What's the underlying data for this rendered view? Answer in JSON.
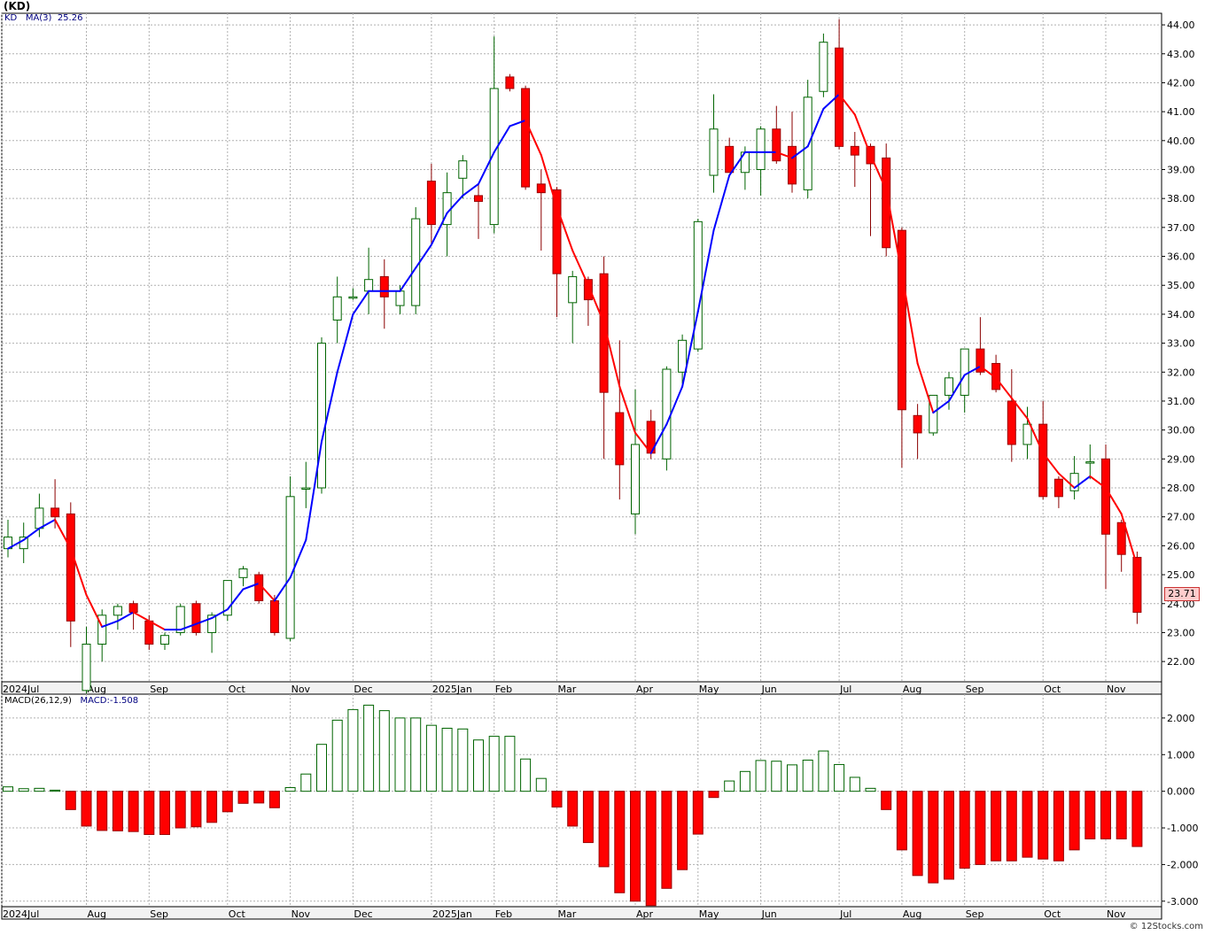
{
  "header": {
    "symbol_label": "(KD)",
    "watermark": "© 12Stocks.com"
  },
  "colors": {
    "up": "#006400",
    "down": "#ff0000",
    "ma_up": "#0000ff",
    "ma_down": "#ff0000",
    "grid": "#b0b0b0",
    "axis": "#000000",
    "price_tag_bg": "#ffcccc"
  },
  "chart_data": [
    {
      "type": "candlestick",
      "legend": {
        "ticker": "KD",
        "ma_label": "MA(3)",
        "ma_value": "25.26"
      },
      "last_price_label": "23.71",
      "ylim": [
        21.3,
        44.4
      ],
      "yticks": [
        "44.00",
        "43.00",
        "42.00",
        "41.00",
        "40.00",
        "39.00",
        "38.00",
        "37.00",
        "36.00",
        "35.00",
        "34.00",
        "33.00",
        "32.00",
        "31.00",
        "30.00",
        "29.00",
        "28.00",
        "27.00",
        "26.00",
        "25.00",
        "24.00",
        "23.00",
        "22.00"
      ],
      "x_labels": [
        {
          "label": "2024Jul",
          "index": 0
        },
        {
          "label": "Aug",
          "index": 5
        },
        {
          "label": "Sep",
          "index": 9
        },
        {
          "label": "Oct",
          "index": 14
        },
        {
          "label": "Nov",
          "index": 18
        },
        {
          "label": "Dec",
          "index": 22
        },
        {
          "label": "2025Jan",
          "index": 27
        },
        {
          "label": "Feb",
          "index": 31
        },
        {
          "label": "Mar",
          "index": 35
        },
        {
          "label": "Apr",
          "index": 40
        },
        {
          "label": "May",
          "index": 44
        },
        {
          "label": "Jun",
          "index": 48
        },
        {
          "label": "Jul",
          "index": 53
        },
        {
          "label": "Aug",
          "index": 57
        },
        {
          "label": "Sep",
          "index": 61
        },
        {
          "label": "Oct",
          "index": 66
        },
        {
          "label": "Nov",
          "index": 70
        }
      ],
      "candles": [
        {
          "o": 25.9,
          "h": 26.9,
          "l": 25.6,
          "c": 26.3
        },
        {
          "o": 25.9,
          "h": 26.8,
          "l": 25.4,
          "c": 26.3
        },
        {
          "o": 26.6,
          "h": 27.8,
          "l": 26.3,
          "c": 27.3
        },
        {
          "o": 27.3,
          "h": 28.3,
          "l": 26.6,
          "c": 27.0
        },
        {
          "o": 27.1,
          "h": 27.5,
          "l": 22.5,
          "c": 23.4
        },
        {
          "o": 21.0,
          "h": 23.2,
          "l": 20.9,
          "c": 22.6
        },
        {
          "o": 22.6,
          "h": 23.8,
          "l": 22.0,
          "c": 23.6
        },
        {
          "o": 23.6,
          "h": 24.0,
          "l": 23.1,
          "c": 23.9
        },
        {
          "o": 24.0,
          "h": 24.1,
          "l": 23.1,
          "c": 23.7
        },
        {
          "o": 23.4,
          "h": 23.6,
          "l": 22.4,
          "c": 22.6
        },
        {
          "o": 22.6,
          "h": 23.0,
          "l": 22.4,
          "c": 22.9
        },
        {
          "o": 23.0,
          "h": 24.0,
          "l": 22.9,
          "c": 23.9
        },
        {
          "o": 24.0,
          "h": 24.1,
          "l": 22.9,
          "c": 23.0
        },
        {
          "o": 23.0,
          "h": 23.7,
          "l": 22.3,
          "c": 23.6
        },
        {
          "o": 23.6,
          "h": 24.8,
          "l": 23.4,
          "c": 24.8
        },
        {
          "o": 24.9,
          "h": 25.3,
          "l": 24.6,
          "c": 25.2
        },
        {
          "o": 25.0,
          "h": 25.1,
          "l": 24.0,
          "c": 24.1
        },
        {
          "o": 24.1,
          "h": 24.3,
          "l": 22.9,
          "c": 23.0
        },
        {
          "o": 22.8,
          "h": 28.4,
          "l": 22.7,
          "c": 27.7
        },
        {
          "o": 28.0,
          "h": 28.9,
          "l": 27.3,
          "c": 28.0
        },
        {
          "o": 28.0,
          "h": 33.2,
          "l": 27.8,
          "c": 33.0
        },
        {
          "o": 33.8,
          "h": 35.3,
          "l": 33.0,
          "c": 34.6
        },
        {
          "o": 34.6,
          "h": 34.9,
          "l": 34.5,
          "c": 34.6
        },
        {
          "o": 34.8,
          "h": 36.3,
          "l": 34.0,
          "c": 35.2
        },
        {
          "o": 35.3,
          "h": 35.9,
          "l": 33.5,
          "c": 34.6
        },
        {
          "o": 34.3,
          "h": 35.0,
          "l": 34.0,
          "c": 34.8
        },
        {
          "o": 34.3,
          "h": 37.7,
          "l": 34.0,
          "c": 37.3
        },
        {
          "o": 38.6,
          "h": 39.2,
          "l": 36.4,
          "c": 37.1
        },
        {
          "o": 37.1,
          "h": 38.9,
          "l": 36.0,
          "c": 38.2
        },
        {
          "o": 38.7,
          "h": 39.5,
          "l": 38.0,
          "c": 39.3
        },
        {
          "o": 38.1,
          "h": 38.5,
          "l": 36.6,
          "c": 37.9
        },
        {
          "o": 37.1,
          "h": 43.6,
          "l": 36.8,
          "c": 41.8
        },
        {
          "o": 42.2,
          "h": 42.3,
          "l": 41.7,
          "c": 41.8
        },
        {
          "o": 41.8,
          "h": 41.9,
          "l": 38.3,
          "c": 38.4
        },
        {
          "o": 38.5,
          "h": 39.0,
          "l": 36.2,
          "c": 38.2
        },
        {
          "o": 38.3,
          "h": 38.4,
          "l": 33.9,
          "c": 35.4
        },
        {
          "o": 34.4,
          "h": 35.5,
          "l": 33.0,
          "c": 35.3
        },
        {
          "o": 35.2,
          "h": 35.3,
          "l": 33.6,
          "c": 34.5
        },
        {
          "o": 35.4,
          "h": 36.0,
          "l": 29.0,
          "c": 31.3
        },
        {
          "o": 30.6,
          "h": 33.1,
          "l": 27.6,
          "c": 28.8
        },
        {
          "o": 27.1,
          "h": 31.4,
          "l": 26.4,
          "c": 29.5
        },
        {
          "o": 30.3,
          "h": 30.7,
          "l": 29.0,
          "c": 29.2
        },
        {
          "o": 29.0,
          "h": 32.2,
          "l": 28.6,
          "c": 32.1
        },
        {
          "o": 32.0,
          "h": 33.3,
          "l": 31.6,
          "c": 33.1
        },
        {
          "o": 32.8,
          "h": 37.3,
          "l": 32.7,
          "c": 37.2
        },
        {
          "o": 38.8,
          "h": 41.6,
          "l": 38.2,
          "c": 40.4
        },
        {
          "o": 39.8,
          "h": 40.1,
          "l": 38.9,
          "c": 38.9
        },
        {
          "o": 38.9,
          "h": 39.8,
          "l": 38.3,
          "c": 39.6
        },
        {
          "o": 39.0,
          "h": 40.5,
          "l": 38.1,
          "c": 40.4
        },
        {
          "o": 40.4,
          "h": 41.2,
          "l": 39.2,
          "c": 39.3
        },
        {
          "o": 39.8,
          "h": 41.0,
          "l": 38.2,
          "c": 38.5
        },
        {
          "o": 38.3,
          "h": 42.1,
          "l": 38.0,
          "c": 41.5
        },
        {
          "o": 41.7,
          "h": 43.7,
          "l": 41.5,
          "c": 43.4
        },
        {
          "o": 43.2,
          "h": 44.2,
          "l": 39.7,
          "c": 39.8
        },
        {
          "o": 39.8,
          "h": 40.3,
          "l": 38.4,
          "c": 39.5
        },
        {
          "o": 39.8,
          "h": 39.9,
          "l": 36.7,
          "c": 39.2
        },
        {
          "o": 39.4,
          "h": 39.9,
          "l": 36.0,
          "c": 36.3
        },
        {
          "o": 36.9,
          "h": 37.0,
          "l": 28.7,
          "c": 30.7
        },
        {
          "o": 30.5,
          "h": 30.9,
          "l": 29.0,
          "c": 29.9
        },
        {
          "o": 29.9,
          "h": 31.2,
          "l": 29.8,
          "c": 31.2
        },
        {
          "o": 31.2,
          "h": 32.0,
          "l": 30.7,
          "c": 31.8
        },
        {
          "o": 31.2,
          "h": 32.8,
          "l": 30.6,
          "c": 32.8
        },
        {
          "o": 32.8,
          "h": 33.9,
          "l": 31.9,
          "c": 32.0
        },
        {
          "o": 32.3,
          "h": 32.6,
          "l": 31.3,
          "c": 31.4
        },
        {
          "o": 31.0,
          "h": 32.1,
          "l": 28.9,
          "c": 29.5
        },
        {
          "o": 29.5,
          "h": 30.8,
          "l": 29.0,
          "c": 30.2
        },
        {
          "o": 30.2,
          "h": 31.0,
          "l": 27.6,
          "c": 27.7
        },
        {
          "o": 28.3,
          "h": 28.4,
          "l": 27.3,
          "c": 27.7
        },
        {
          "o": 27.9,
          "h": 29.1,
          "l": 27.6,
          "c": 28.5
        },
        {
          "o": 28.9,
          "h": 29.5,
          "l": 28.3,
          "c": 28.9
        },
        {
          "o": 29.0,
          "h": 29.5,
          "l": 24.5,
          "c": 26.4
        },
        {
          "o": 26.8,
          "h": 26.9,
          "l": 25.1,
          "c": 25.7
        },
        {
          "o": 25.6,
          "h": 25.8,
          "l": 23.3,
          "c": 23.7
        }
      ],
      "ma": [
        25.9,
        26.2,
        26.6,
        26.9,
        25.9,
        24.3,
        23.2,
        23.4,
        23.7,
        23.4,
        23.1,
        23.1,
        23.3,
        23.5,
        23.8,
        24.5,
        24.7,
        24.1,
        24.9,
        26.2,
        29.6,
        32.0,
        34.0,
        34.8,
        34.8,
        34.8,
        35.6,
        36.4,
        37.5,
        38.1,
        38.5,
        39.6,
        40.5,
        40.7,
        39.5,
        37.7,
        36.2,
        35.0,
        33.7,
        31.5,
        29.9,
        29.2,
        30.2,
        31.5,
        34.1,
        36.9,
        38.8,
        39.6,
        39.6,
        39.6,
        39.4,
        39.8,
        41.1,
        41.6,
        40.9,
        39.5,
        38.3,
        35.4,
        32.3,
        30.6,
        31.0,
        31.9,
        32.2,
        31.8,
        31.1,
        30.4,
        29.2,
        28.5,
        28.0,
        28.4,
        28.0,
        27.1,
        25.3
      ]
    },
    {
      "type": "bar",
      "legend": {
        "name": "MACD(26,12,9)",
        "value_label": "MACD:-1.508"
      },
      "ylim": [
        -3.15,
        2.65
      ],
      "yticks": [
        "2.000",
        "1.000",
        "0.000",
        "-1.000",
        "-2.000",
        "-3.000"
      ],
      "values": [
        0.12,
        0.07,
        0.08,
        0.03,
        -0.5,
        -0.95,
        -1.07,
        -1.08,
        -1.1,
        -1.18,
        -1.18,
        -1.0,
        -0.97,
        -0.85,
        -0.56,
        -0.33,
        -0.32,
        -0.45,
        0.1,
        0.47,
        1.28,
        1.94,
        2.23,
        2.35,
        2.2,
        2.0,
        2.0,
        1.8,
        1.72,
        1.7,
        1.4,
        1.5,
        1.5,
        0.88,
        0.35,
        -0.43,
        -0.95,
        -1.4,
        -2.06,
        -2.77,
        -3.0,
        -3.12,
        -2.65,
        -2.14,
        -1.17,
        -0.17,
        0.28,
        0.54,
        0.84,
        0.82,
        0.72,
        0.85,
        1.1,
        0.73,
        0.38,
        0.08,
        -0.5,
        -1.6,
        -2.3,
        -2.5,
        -2.4,
        -2.1,
        -2.0,
        -1.9,
        -1.9,
        -1.8,
        -1.85,
        -1.9,
        -1.6,
        -1.3,
        -1.3,
        -1.3,
        -1.508
      ]
    }
  ]
}
